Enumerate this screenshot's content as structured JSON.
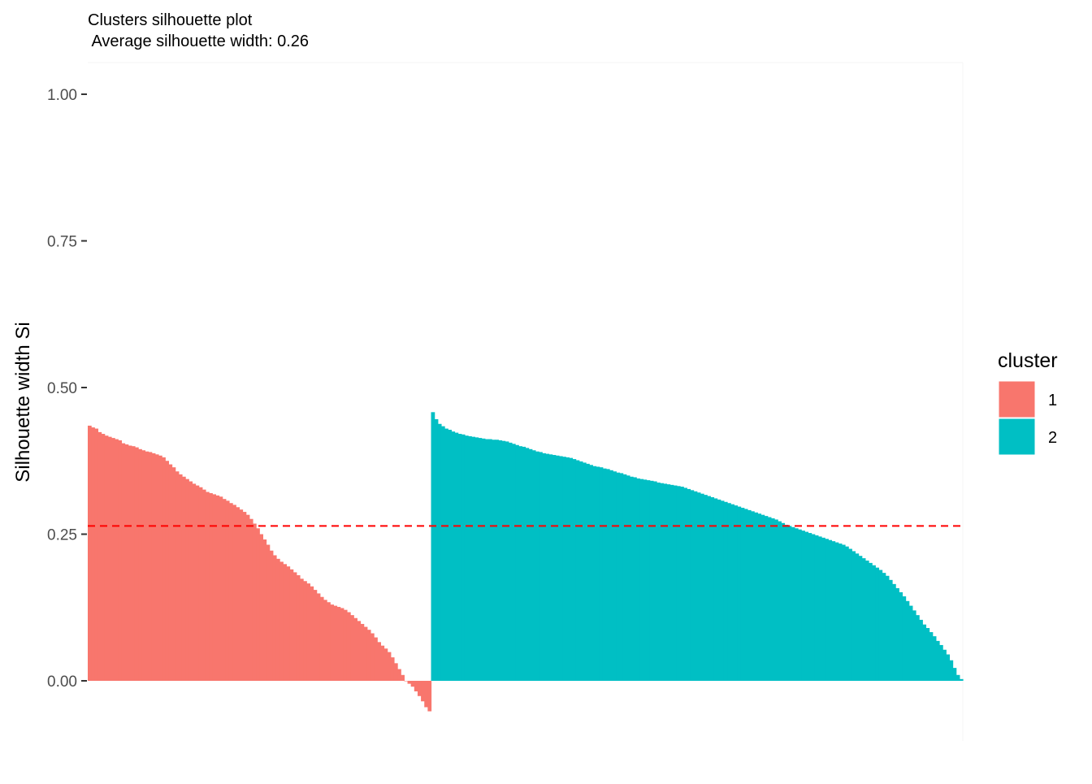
{
  "chart_data": {
    "type": "bar",
    "title": "Clusters silhouette plot",
    "subtitle": " Average silhouette width: 0.26",
    "xlabel": "",
    "ylabel": "Silhouette width Si",
    "ylim": [
      -0.06,
      1.03
    ],
    "yticks": [
      0.0,
      0.25,
      0.5,
      0.75,
      1.0
    ],
    "ytick_labels": [
      "0.00",
      "0.25",
      "0.50",
      "0.75",
      "1.00"
    ],
    "grid": false,
    "average_line": {
      "value": 0.264,
      "color": "#ff0000",
      "style": "dashed"
    },
    "legend": {
      "title": "cluster",
      "position": "right",
      "entries": [
        {
          "label": "1",
          "color": "#F8766D"
        },
        {
          "label": "2",
          "color": "#00BFC4"
        }
      ]
    },
    "series": [
      {
        "name": "1",
        "color": "#F8766D",
        "values": [
          0.435,
          0.432,
          0.43,
          0.424,
          0.421,
          0.418,
          0.416,
          0.414,
          0.412,
          0.41,
          0.405,
          0.403,
          0.401,
          0.4,
          0.398,
          0.395,
          0.393,
          0.391,
          0.39,
          0.388,
          0.386,
          0.384,
          0.381,
          0.375,
          0.369,
          0.364,
          0.357,
          0.352,
          0.348,
          0.344,
          0.34,
          0.336,
          0.333,
          0.33,
          0.326,
          0.322,
          0.32,
          0.318,
          0.316,
          0.314,
          0.31,
          0.307,
          0.303,
          0.3,
          0.296,
          0.292,
          0.288,
          0.283,
          0.276,
          0.268,
          0.26,
          0.25,
          0.241,
          0.232,
          0.222,
          0.214,
          0.208,
          0.203,
          0.199,
          0.195,
          0.19,
          0.185,
          0.18,
          0.174,
          0.17,
          0.166,
          0.161,
          0.155,
          0.149,
          0.143,
          0.138,
          0.134,
          0.13,
          0.128,
          0.126,
          0.124,
          0.121,
          0.117,
          0.112,
          0.107,
          0.102,
          0.097,
          0.092,
          0.087,
          0.081,
          0.074,
          0.066,
          0.06,
          0.055,
          0.049,
          0.04,
          0.03,
          0.02,
          0.01,
          0.0,
          -0.005,
          -0.01,
          -0.018,
          -0.026,
          -0.035,
          -0.045,
          -0.052
        ]
      },
      {
        "name": "2",
        "color": "#00BFC4",
        "values": [
          0.458,
          0.446,
          0.438,
          0.434,
          0.43,
          0.428,
          0.425,
          0.423,
          0.421,
          0.42,
          0.418,
          0.417,
          0.416,
          0.415,
          0.414,
          0.413,
          0.412,
          0.412,
          0.411,
          0.411,
          0.41,
          0.409,
          0.408,
          0.406,
          0.404,
          0.402,
          0.4,
          0.399,
          0.397,
          0.395,
          0.393,
          0.391,
          0.39,
          0.388,
          0.387,
          0.386,
          0.385,
          0.384,
          0.383,
          0.382,
          0.381,
          0.38,
          0.378,
          0.376,
          0.374,
          0.372,
          0.37,
          0.368,
          0.366,
          0.365,
          0.364,
          0.362,
          0.361,
          0.359,
          0.357,
          0.355,
          0.354,
          0.352,
          0.35,
          0.348,
          0.347,
          0.345,
          0.344,
          0.343,
          0.342,
          0.341,
          0.34,
          0.338,
          0.337,
          0.336,
          0.335,
          0.334,
          0.333,
          0.332,
          0.331,
          0.329,
          0.327,
          0.325,
          0.323,
          0.321,
          0.319,
          0.317,
          0.315,
          0.313,
          0.311,
          0.309,
          0.307,
          0.305,
          0.303,
          0.301,
          0.299,
          0.297,
          0.295,
          0.293,
          0.291,
          0.289,
          0.287,
          0.285,
          0.283,
          0.281,
          0.279,
          0.277,
          0.275,
          0.272,
          0.269,
          0.266,
          0.264,
          0.262,
          0.26,
          0.258,
          0.256,
          0.254,
          0.252,
          0.25,
          0.248,
          0.246,
          0.244,
          0.242,
          0.24,
          0.238,
          0.236,
          0.234,
          0.232,
          0.229,
          0.225,
          0.221,
          0.217,
          0.213,
          0.209,
          0.205,
          0.201,
          0.197,
          0.193,
          0.189,
          0.184,
          0.179,
          0.172,
          0.165,
          0.158,
          0.151,
          0.144,
          0.136,
          0.128,
          0.12,
          0.112,
          0.104,
          0.096,
          0.09,
          0.083,
          0.076,
          0.068,
          0.061,
          0.053,
          0.045,
          0.035,
          0.022,
          0.01,
          0.003
        ]
      }
    ]
  }
}
